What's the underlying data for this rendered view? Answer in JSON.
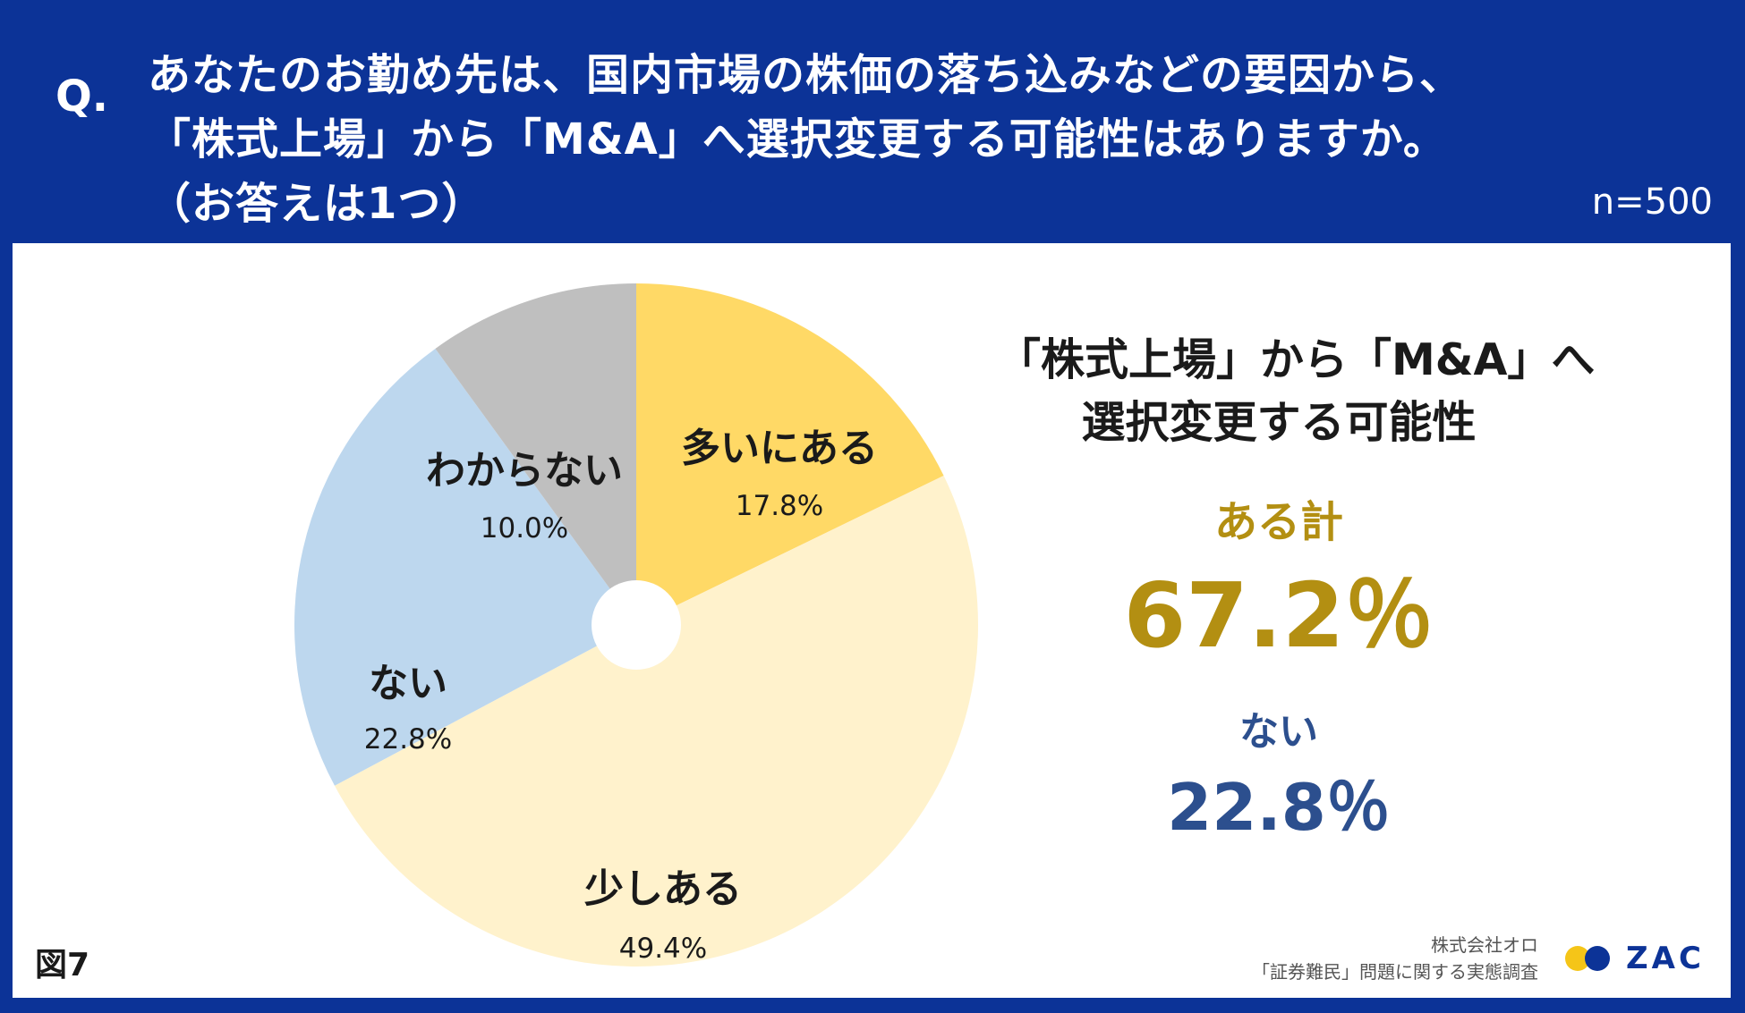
{
  "header": {
    "q_mark": "Q.",
    "question_lines": [
      "あなたのお勤め先は、国内市場の株価の落ち込みなどの要因から、",
      "「株式上場」から「M&A」へ選択変更する可能性はありますか。",
      "（お答えは1つ）"
    ],
    "sample_size": "n=500"
  },
  "chart_data": {
    "type": "pie",
    "donut_hole": true,
    "start_angle_deg": 0,
    "direction": "clockwise",
    "slices": [
      {
        "label": "多いにある",
        "value": 17.8,
        "value_label": "17.8%",
        "color": "#ffd966"
      },
      {
        "label": "少しある",
        "value": 49.4,
        "value_label": "49.4%",
        "color": "#fff2cc"
      },
      {
        "label": "ない",
        "value": 22.8,
        "value_label": "22.8%",
        "color": "#bdd7ee"
      },
      {
        "label": "わからない",
        "value": 10.0,
        "value_label": "10.0%",
        "color": "#bfbfbf"
      }
    ]
  },
  "summary": {
    "title_lines": [
      "「株式上場」から「M&A」へ",
      "選択変更する可能性"
    ],
    "sum_label": "ある計",
    "sum_value": "67.2％",
    "sum_color": "#b38f12",
    "no_label": "ない",
    "no_value": "22.8％",
    "no_color": "#2c4f8e"
  },
  "footer": {
    "figure_label": "図7",
    "credit_lines": [
      "株式会社オロ",
      "「証券難民」問題に関する実態調査"
    ],
    "logo_text": "ZAC",
    "logo_icon": "zac-logo-dots-icon"
  }
}
